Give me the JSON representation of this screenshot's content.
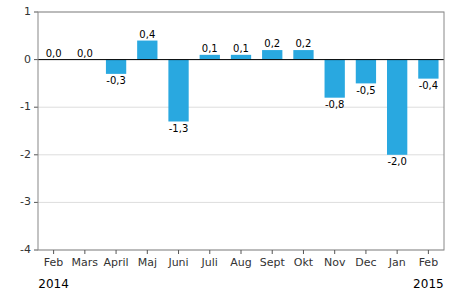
{
  "chart_data": {
    "type": "bar",
    "categories": [
      "Feb",
      "Mars",
      "April",
      "Maj",
      "Juni",
      "Juli",
      "Aug",
      "Sept",
      "Okt",
      "Nov",
      "Dec",
      "Jan",
      "Feb"
    ],
    "values": [
      0.0,
      0.0,
      -0.3,
      0.4,
      -1.3,
      0.1,
      0.1,
      0.2,
      0.2,
      -0.8,
      -0.5,
      -2.0,
      -0.4
    ],
    "value_labels": [
      "0,0",
      "0,0",
      "-0,3",
      "0,4",
      "-1,3",
      "0,1",
      "0,1",
      "0,2",
      "0,2",
      "-0,8",
      "-0,5",
      "-2,0",
      "-0,4"
    ],
    "data_labels": true,
    "color": "#29a8e0",
    "ylim": [
      -4,
      1
    ],
    "yticks": [
      -4,
      -3,
      -2,
      -1,
      0,
      1
    ],
    "grid": true,
    "annotations": [
      "2014",
      "2015"
    ]
  }
}
